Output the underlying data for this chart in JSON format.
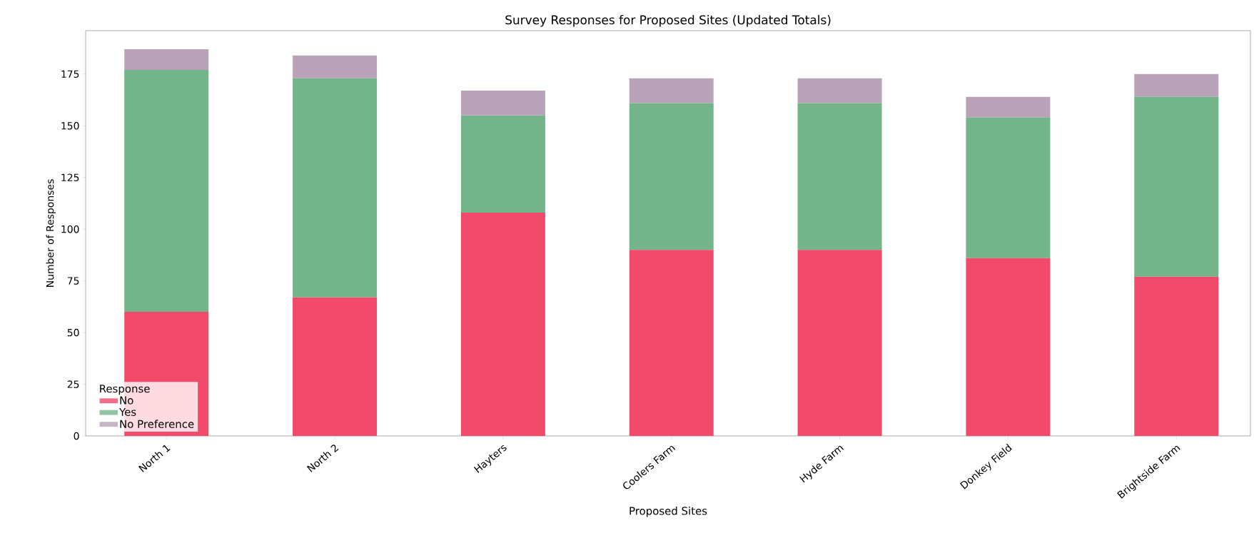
{
  "chart_data": {
    "type": "bar",
    "title": "Survey Responses for Proposed Sites (Updated Totals)",
    "xlabel": "Proposed Sites",
    "ylabel": "Number of Responses",
    "legend_title": "Response",
    "categories": [
      "North 1",
      "North 2",
      "Hayters",
      "Coolers Farm",
      "Hyde Farm",
      "Donkey Field",
      "Brightside Farm"
    ],
    "stacked": true,
    "series": [
      {
        "name": "No",
        "color": "#f24a6a",
        "values": [
          60,
          67,
          108,
          90,
          90,
          86,
          77
        ]
      },
      {
        "name": "Yes",
        "color": "#74b48a",
        "values": [
          117,
          106,
          47,
          71,
          71,
          68,
          87
        ]
      },
      {
        "name": "No Preference",
        "color": "#b9a3b8",
        "values": [
          10,
          11,
          12,
          12,
          12,
          10,
          11
        ]
      }
    ],
    "ylim": [
      0,
      196
    ],
    "yticks": [
      0,
      25,
      50,
      75,
      100,
      125,
      150,
      175
    ],
    "grid": false,
    "legend": "bottom left"
  }
}
